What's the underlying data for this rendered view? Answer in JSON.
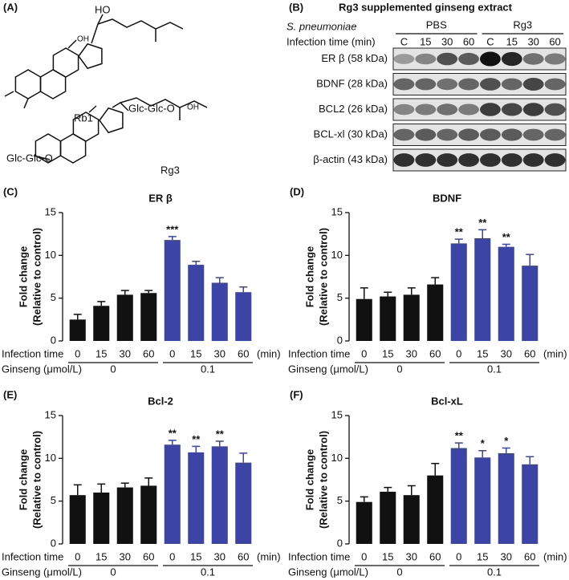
{
  "panel_a": {
    "label": "(A)",
    "texts": [
      "HO",
      "OH",
      "Rb1",
      "Glc-Glc-O",
      "OH",
      "Glc-Glc-O",
      "Rg3"
    ]
  },
  "panel_b": {
    "label": "(B)",
    "title": "Rg3 supplemented ginseng extract",
    "strain": "S. pneumoniae",
    "time_label": "Infection time (min)",
    "groups": [
      "PBS",
      "Rg3"
    ],
    "lanes": [
      "C",
      "15",
      "30",
      "60",
      "C",
      "15",
      "30",
      "60"
    ],
    "rows": [
      "ER β (58 kDa)",
      "BDNF (28 kDa)",
      "BCL2 (26 kDa)",
      "BCL-xl (30 kDa)",
      "β-actin (43 kDa)"
    ]
  },
  "chart_data": [
    {
      "type": "bar",
      "panel": "(C)",
      "title": "ER β",
      "ylabel": [
        "Fold change",
        "(Relative to control)"
      ],
      "categories": [
        "0",
        "15",
        "30",
        "60",
        "0",
        "15",
        "30",
        "60"
      ],
      "xlabel": "Infection time",
      "xunit": "(min)",
      "group_label": "Ginseng (μmol/L)",
      "groups": [
        "0",
        "0.1"
      ],
      "values": [
        2.5,
        4.1,
        5.4,
        5.6,
        11.8,
        8.9,
        6.8,
        5.7
      ],
      "errors": [
        0.6,
        0.5,
        0.5,
        0.3,
        0.4,
        0.4,
        0.6,
        0.6
      ],
      "significance": [
        null,
        null,
        null,
        null,
        "***",
        null,
        null,
        null
      ],
      "colors": [
        "#111111",
        "#111111",
        "#111111",
        "#111111",
        "#3c45a5",
        "#3c45a5",
        "#3c45a5",
        "#3c45a5"
      ],
      "ylim": [
        0,
        15
      ],
      "yticks": [
        0,
        5,
        10,
        15
      ]
    },
    {
      "type": "bar",
      "panel": "(D)",
      "title": "BDNF",
      "ylabel": [
        "Fold change",
        "(Relative to control)"
      ],
      "categories": [
        "0",
        "15",
        "30",
        "60",
        "0",
        "15",
        "30",
        "60"
      ],
      "xlabel": "Infection time",
      "xunit": "(min)",
      "group_label": "Ginseng (μmol/L)",
      "groups": [
        "0",
        "0.1"
      ],
      "values": [
        4.9,
        5.2,
        5.4,
        6.6,
        11.4,
        12.0,
        11.0,
        8.8
      ],
      "errors": [
        1.3,
        0.5,
        0.8,
        0.8,
        0.5,
        1.0,
        0.3,
        1.3
      ],
      "significance": [
        null,
        null,
        null,
        null,
        "**",
        "**",
        "**",
        null
      ],
      "colors": [
        "#111111",
        "#111111",
        "#111111",
        "#111111",
        "#3c45a5",
        "#3c45a5",
        "#3c45a5",
        "#3c45a5"
      ],
      "ylim": [
        0,
        15
      ],
      "yticks": [
        0,
        5,
        10,
        15
      ]
    },
    {
      "type": "bar",
      "panel": "(E)",
      "title": "Bcl-2",
      "ylabel": [
        "Fold change",
        "(Relative to control)"
      ],
      "categories": [
        "0",
        "15",
        "30",
        "60",
        "0",
        "15",
        "30",
        "60"
      ],
      "xlabel": "Infection time",
      "xunit": "(min)",
      "group_label": "Ginseng (μmol/L)",
      "groups": [
        "0",
        "0.1"
      ],
      "values": [
        5.7,
        6.0,
        6.6,
        6.8,
        11.6,
        10.7,
        11.4,
        9.5
      ],
      "errors": [
        1.2,
        1.0,
        0.5,
        0.9,
        0.5,
        0.7,
        0.6,
        1.1
      ],
      "significance": [
        null,
        null,
        null,
        null,
        "**",
        "**",
        "**",
        null
      ],
      "colors": [
        "#111111",
        "#111111",
        "#111111",
        "#111111",
        "#3c45a5",
        "#3c45a5",
        "#3c45a5",
        "#3c45a5"
      ],
      "ylim": [
        0,
        15
      ],
      "yticks": [
        0,
        5,
        10,
        15
      ]
    },
    {
      "type": "bar",
      "panel": "(F)",
      "title": "Bcl-xL",
      "ylabel": [
        "Fold change",
        "(Relative to control)"
      ],
      "categories": [
        "0",
        "15",
        "30",
        "60",
        "0",
        "15",
        "30",
        "60"
      ],
      "xlabel": "Infection time",
      "xunit": "(min)",
      "group_label": "Ginseng (μmol/L)",
      "groups": [
        "0",
        "0.1"
      ],
      "values": [
        4.9,
        6.1,
        5.7,
        8.0,
        11.2,
        10.1,
        10.6,
        9.3
      ],
      "errors": [
        0.6,
        0.5,
        1.1,
        1.4,
        0.6,
        0.8,
        0.6,
        0.9
      ],
      "significance": [
        null,
        null,
        null,
        null,
        "**",
        "*",
        "*",
        null
      ],
      "colors": [
        "#111111",
        "#111111",
        "#111111",
        "#111111",
        "#3c45a5",
        "#3c45a5",
        "#3c45a5",
        "#3c45a5"
      ],
      "ylim": [
        0,
        15
      ],
      "yticks": [
        0,
        5,
        10,
        15
      ]
    }
  ]
}
